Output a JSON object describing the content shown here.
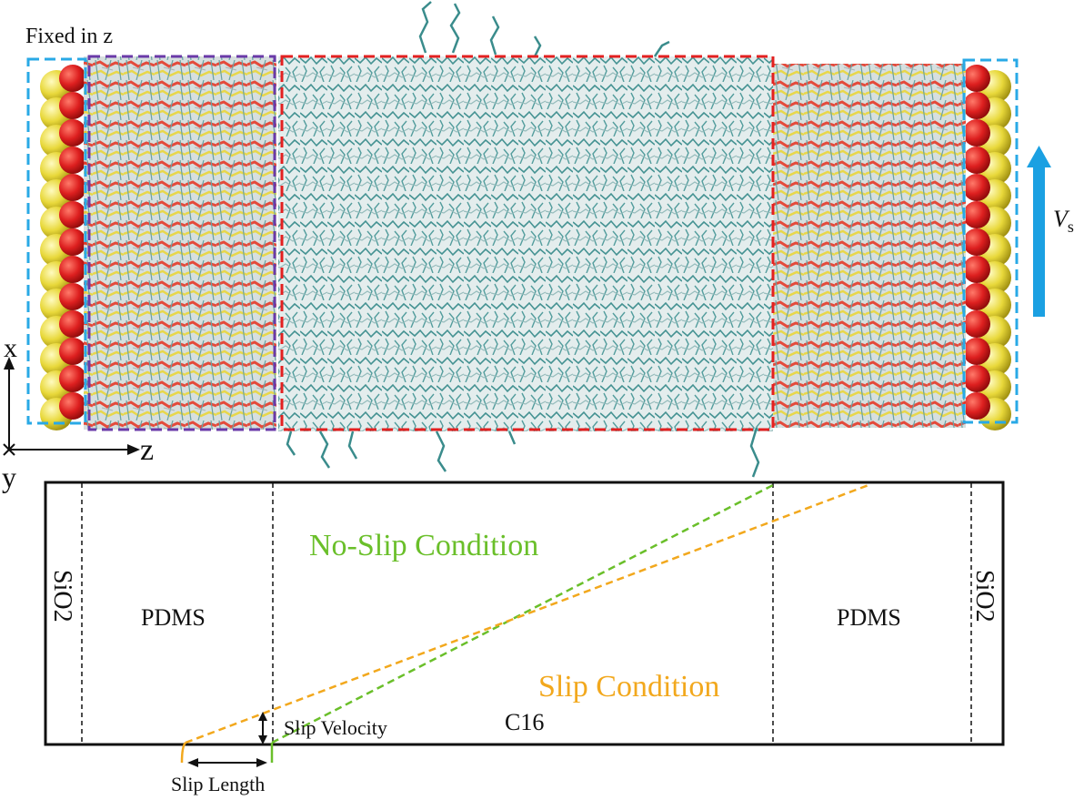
{
  "labels": {
    "fixed": "Fixed in z",
    "axis_x": "x",
    "axis_y": "y",
    "axis_z": "z",
    "velocity": "V",
    "velocity_sub": "s",
    "pdms_left": "PDMS",
    "pdms_right": "PDMS",
    "sio2_left": "SiO2",
    "sio2_right": "SiO2",
    "no_slip": "No-Slip Condition",
    "slip": "Slip Condition",
    "slip_velocity": "Slip Velocity",
    "slip_length": "Slip Length",
    "c16": "C16"
  },
  "colors": {
    "fixed_box": "#29a9e6",
    "pdms_box": "#6a3aa8",
    "c16_box": "#e32020",
    "arrow": "#1ba0e2",
    "no_slip": "#6abf2a",
    "slip": "#f2a81d",
    "oxygen": "#dd2020",
    "silicon": "#e8d83a",
    "carbon": "#3a8c8c"
  },
  "icons": {
    "velocity_arrow": "up-arrow"
  }
}
